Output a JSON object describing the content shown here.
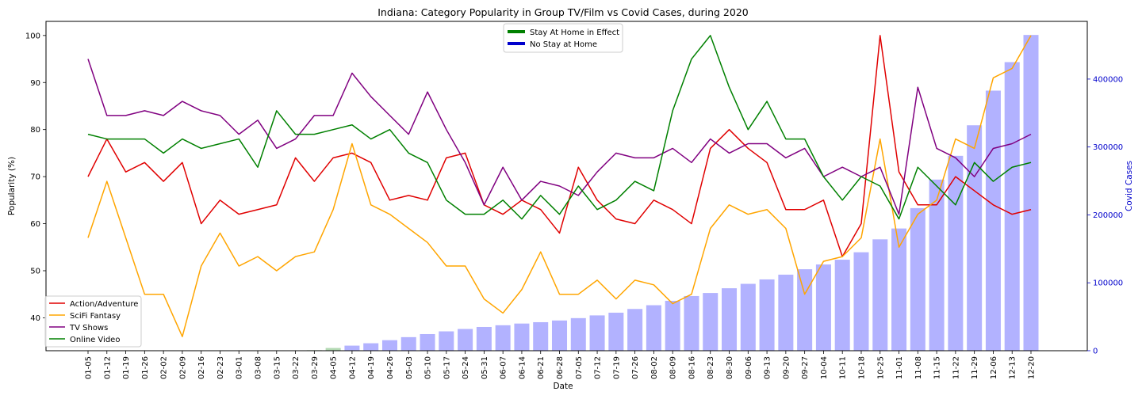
{
  "chart_data": {
    "type": "line",
    "title": "Indiana: Category Popularity in Group TV/Film vs Covid Cases, during 2020",
    "xlabel": "Date",
    "ylabel": "Popularity (%)",
    "y2label": "Covid Cases",
    "ylim": [
      33,
      103
    ],
    "y2lim": [
      0,
      485000
    ],
    "yticks": [
      40,
      50,
      60,
      70,
      80,
      90,
      100
    ],
    "y2ticks": [
      0,
      100000,
      200000,
      300000,
      400000
    ],
    "grid": false,
    "categories": [
      "01-05",
      "01-12",
      "01-19",
      "01-26",
      "02-02",
      "02-09",
      "02-16",
      "02-23",
      "03-01",
      "03-08",
      "03-15",
      "03-22",
      "03-29",
      "04-05",
      "04-12",
      "04-19",
      "04-26",
      "05-03",
      "05-10",
      "05-17",
      "05-24",
      "05-31",
      "06-07",
      "06-14",
      "06-21",
      "06-28",
      "07-05",
      "07-12",
      "07-19",
      "07-26",
      "08-02",
      "08-09",
      "08-16",
      "08-23",
      "08-30",
      "09-06",
      "09-13",
      "09-20",
      "09-27",
      "10-04",
      "10-11",
      "10-18",
      "10-25",
      "11-01",
      "11-08",
      "11-15",
      "11-22",
      "11-29",
      "12-06",
      "12-13",
      "12-20"
    ],
    "series": [
      {
        "name": "Action/Adventure",
        "color": "#e00000",
        "values": [
          70,
          78,
          71,
          73,
          69,
          73,
          60,
          65,
          62,
          63,
          64,
          74,
          69,
          74,
          75,
          73,
          65,
          66,
          65,
          74,
          75,
          64,
          62,
          65,
          63,
          58,
          72,
          65,
          61,
          60,
          65,
          63,
          60,
          76,
          80,
          76,
          73,
          63,
          63,
          65,
          53,
          60,
          100,
          71,
          64,
          64,
          70,
          67,
          64,
          62,
          63
        ]
      },
      {
        "name": "SciFi Fantasy",
        "color": "#ffa500",
        "values": [
          57,
          69,
          57,
          45,
          45,
          36,
          51,
          58,
          51,
          53,
          50,
          53,
          54,
          63,
          77,
          64,
          62,
          59,
          56,
          51,
          51,
          44,
          41,
          46,
          54,
          45,
          45,
          48,
          44,
          48,
          47,
          43,
          45,
          59,
          64,
          62,
          63,
          59,
          45,
          52,
          53,
          57,
          78,
          55,
          62,
          65,
          78,
          76,
          91,
          93,
          100
        ]
      },
      {
        "name": "TV Shows",
        "color": "#800080",
        "values": [
          95,
          83,
          83,
          84,
          83,
          86,
          84,
          83,
          79,
          82,
          76,
          78,
          83,
          83,
          92,
          87,
          83,
          79,
          88,
          80,
          73,
          64,
          72,
          65,
          69,
          68,
          66,
          71,
          75,
          74,
          74,
          76,
          73,
          78,
          75,
          77,
          77,
          74,
          76,
          70,
          72,
          70,
          72,
          62,
          89,
          76,
          74,
          70,
          76,
          77,
          79
        ]
      },
      {
        "name": "Online Video",
        "color": "#008000",
        "values": [
          79,
          78,
          78,
          78,
          75,
          78,
          76,
          77,
          78,
          72,
          84,
          79,
          79,
          80,
          81,
          78,
          80,
          75,
          73,
          65,
          62,
          62,
          65,
          61,
          66,
          62,
          68,
          63,
          65,
          69,
          67,
          84,
          95,
          100,
          89,
          80,
          86,
          78,
          78,
          70,
          65,
          70,
          68,
          61,
          72,
          68,
          64,
          73,
          69,
          72,
          73
        ]
      }
    ],
    "covid_bars": {
      "name": "Covid Cases",
      "color_no_stay": "#0000ff",
      "color_stay": "#008000",
      "stay_at_home": [
        false,
        false,
        false,
        false,
        false,
        false,
        false,
        false,
        false,
        false,
        false,
        false,
        true,
        true,
        false,
        false,
        false,
        false,
        false,
        false,
        false,
        false,
        false,
        false,
        false,
        false,
        false,
        false,
        false,
        false,
        false,
        false,
        false,
        false,
        false,
        false,
        false,
        false,
        false,
        false,
        false,
        false,
        false,
        false,
        false,
        false,
        false,
        false,
        false,
        false,
        false
      ],
      "values": [
        0,
        0,
        0,
        0,
        0,
        0,
        0,
        0,
        0,
        0,
        0,
        0,
        800,
        4000,
        7500,
        11000,
        15500,
        20000,
        24500,
        28500,
        32000,
        35000,
        37500,
        40000,
        42000,
        44500,
        48000,
        52000,
        56000,
        61500,
        67000,
        73500,
        80500,
        85000,
        92000,
        98500,
        105000,
        112000,
        120000,
        127000,
        134000,
        145000,
        164000,
        180000,
        210000,
        252000,
        287000,
        332000,
        383000,
        425000,
        465000
      ]
    },
    "legends": {
      "lines_placement": "lower-left",
      "bars_placement": "upper-center",
      "bar_entries": [
        {
          "label": "Stay At Home in Effect",
          "color": "#008000"
        },
        {
          "label": "No Stay at Home",
          "color": "#0000cc"
        }
      ]
    }
  }
}
